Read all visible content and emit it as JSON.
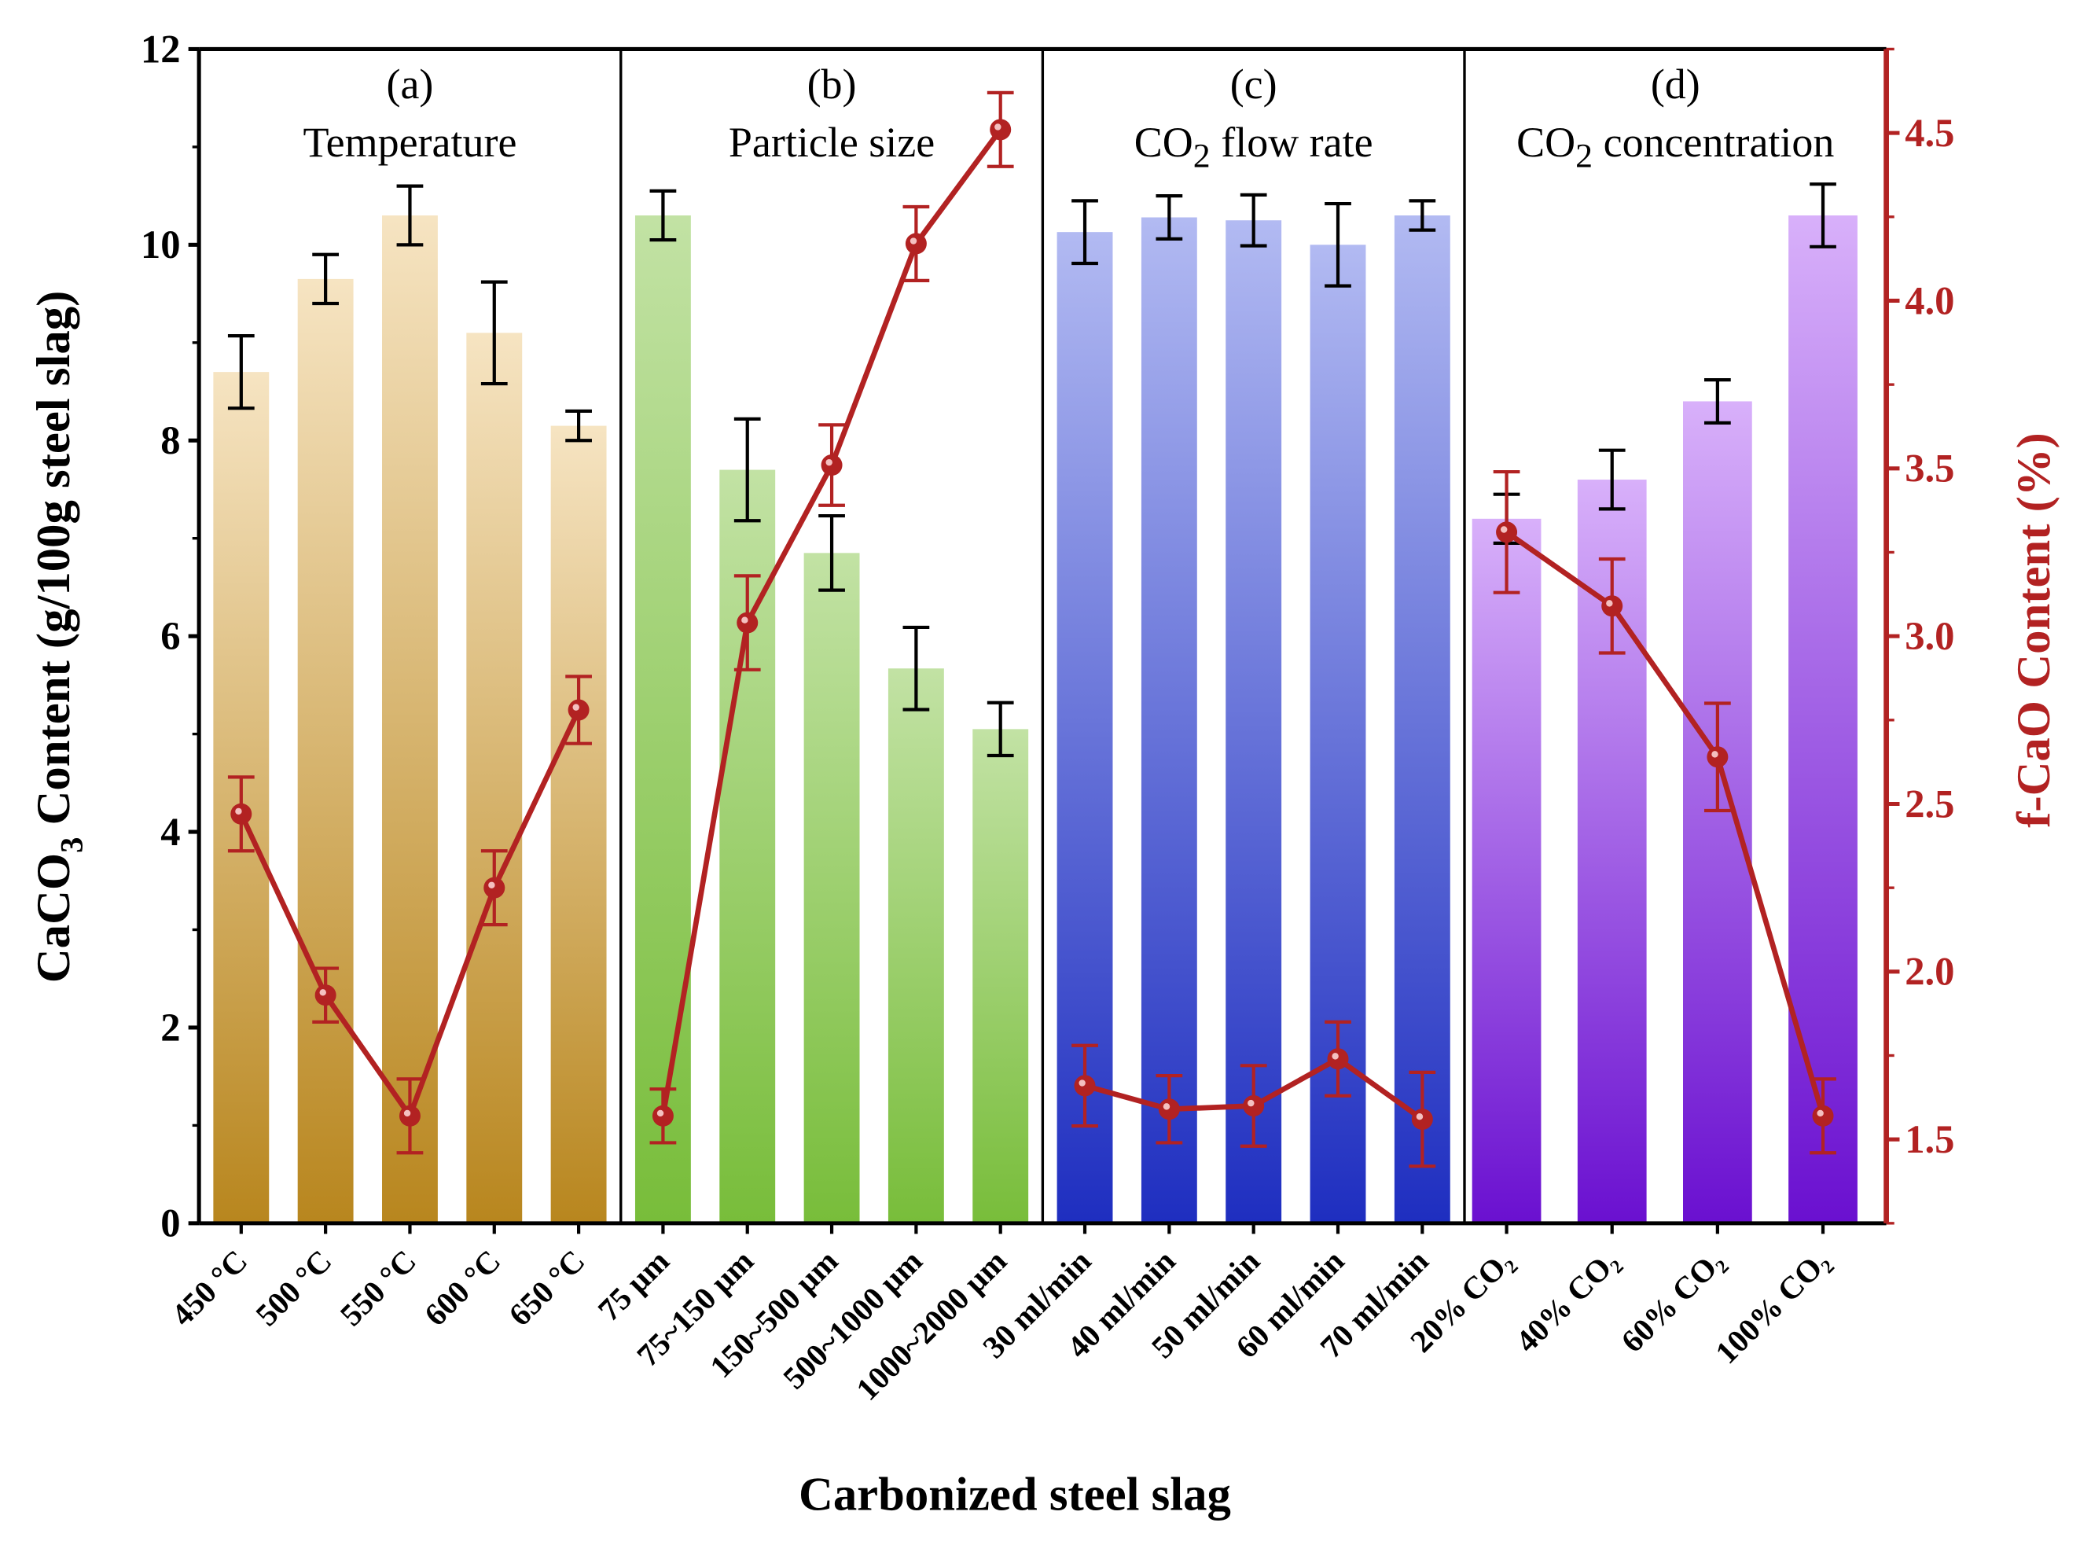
{
  "chart_data": {
    "type": "bar",
    "xlabel": "Carbonized steel slag",
    "ylabel": "CaCO3 Content (g/100g steel slag)",
    "ylabel_parts": {
      "pre": "CaCO",
      "sub": "3",
      "post": " Content (g/100g steel slag)"
    },
    "y2label": "f-CaO Content (%)",
    "ylim": [
      0,
      12
    ],
    "y2lim": [
      1.25,
      4.75
    ],
    "yticks": [
      "0",
      "2",
      "4",
      "6",
      "8",
      "10",
      "12"
    ],
    "y2ticks": [
      "1.5",
      "2.0",
      "2.5",
      "3.0",
      "3.5",
      "4.0",
      "4.5"
    ],
    "colors": {
      "line": "#b22222",
      "errbar": "#000000"
    },
    "panels": [
      {
        "tag": "(a)",
        "title": "Temperature",
        "title_sub": "",
        "title_post": "",
        "gradient": [
          "#f6e4c2",
          "#b8861e"
        ],
        "categories": [
          "450 °C",
          "500 °C",
          "550 °C",
          "600 °C",
          "650 °C"
        ],
        "caco3": [
          8.7,
          9.65,
          10.3,
          9.1,
          8.15
        ],
        "caco3_err": [
          0.37,
          0.25,
          0.3,
          0.52,
          0.15
        ],
        "fcao": [
          2.47,
          1.93,
          1.57,
          2.25,
          2.78
        ],
        "fcao_err": [
          0.11,
          0.08,
          0.11,
          0.11,
          0.1
        ]
      },
      {
        "tag": "(b)",
        "title": "Particle size",
        "title_sub": "",
        "title_post": "",
        "gradient": [
          "#c2e2a4",
          "#78bd3a"
        ],
        "categories": [
          "75 µm",
          "75~150 µm",
          "150~500 µm",
          "500~1000 µm",
          "1000~2000 µm"
        ],
        "caco3": [
          10.3,
          7.7,
          6.85,
          5.67,
          5.05
        ],
        "caco3_err": [
          0.25,
          0.52,
          0.38,
          0.42,
          0.27
        ],
        "fcao": [
          1.57,
          3.04,
          3.51,
          4.17,
          4.51
        ],
        "fcao_err": [
          0.08,
          0.14,
          0.12,
          0.11,
          0.11
        ]
      },
      {
        "tag": "(c)",
        "title": "CO",
        "title_sub": "2",
        "title_post": " flow rate",
        "gradient": [
          "#b2baf2",
          "#1e2ec0"
        ],
        "categories": [
          "30 ml/min",
          "40 ml/min",
          "50 ml/min",
          "60 ml/min",
          "70 ml/min"
        ],
        "caco3": [
          10.13,
          10.28,
          10.25,
          10.0,
          10.3
        ],
        "caco3_err": [
          0.32,
          0.22,
          0.26,
          0.42,
          0.15
        ],
        "fcao": [
          1.66,
          1.59,
          1.6,
          1.74,
          1.56
        ],
        "fcao_err": [
          0.12,
          0.1,
          0.12,
          0.11,
          0.14
        ]
      },
      {
        "tag": "(d)",
        "title": "CO",
        "title_sub": "2",
        "title_post": " concentration",
        "gradient": [
          "#d8b0fa",
          "#6a10d0"
        ],
        "categories": [
          "20% CO₂",
          "40% CO₂",
          "60% CO₂",
          "100% CO₂"
        ],
        "caco3": [
          7.2,
          7.6,
          8.4,
          10.3
        ],
        "caco3_err": [
          0.25,
          0.3,
          0.22,
          0.32
        ],
        "fcao": [
          3.31,
          3.09,
          2.64,
          1.57
        ],
        "fcao_err": [
          0.18,
          0.14,
          0.16,
          0.11
        ]
      }
    ]
  }
}
